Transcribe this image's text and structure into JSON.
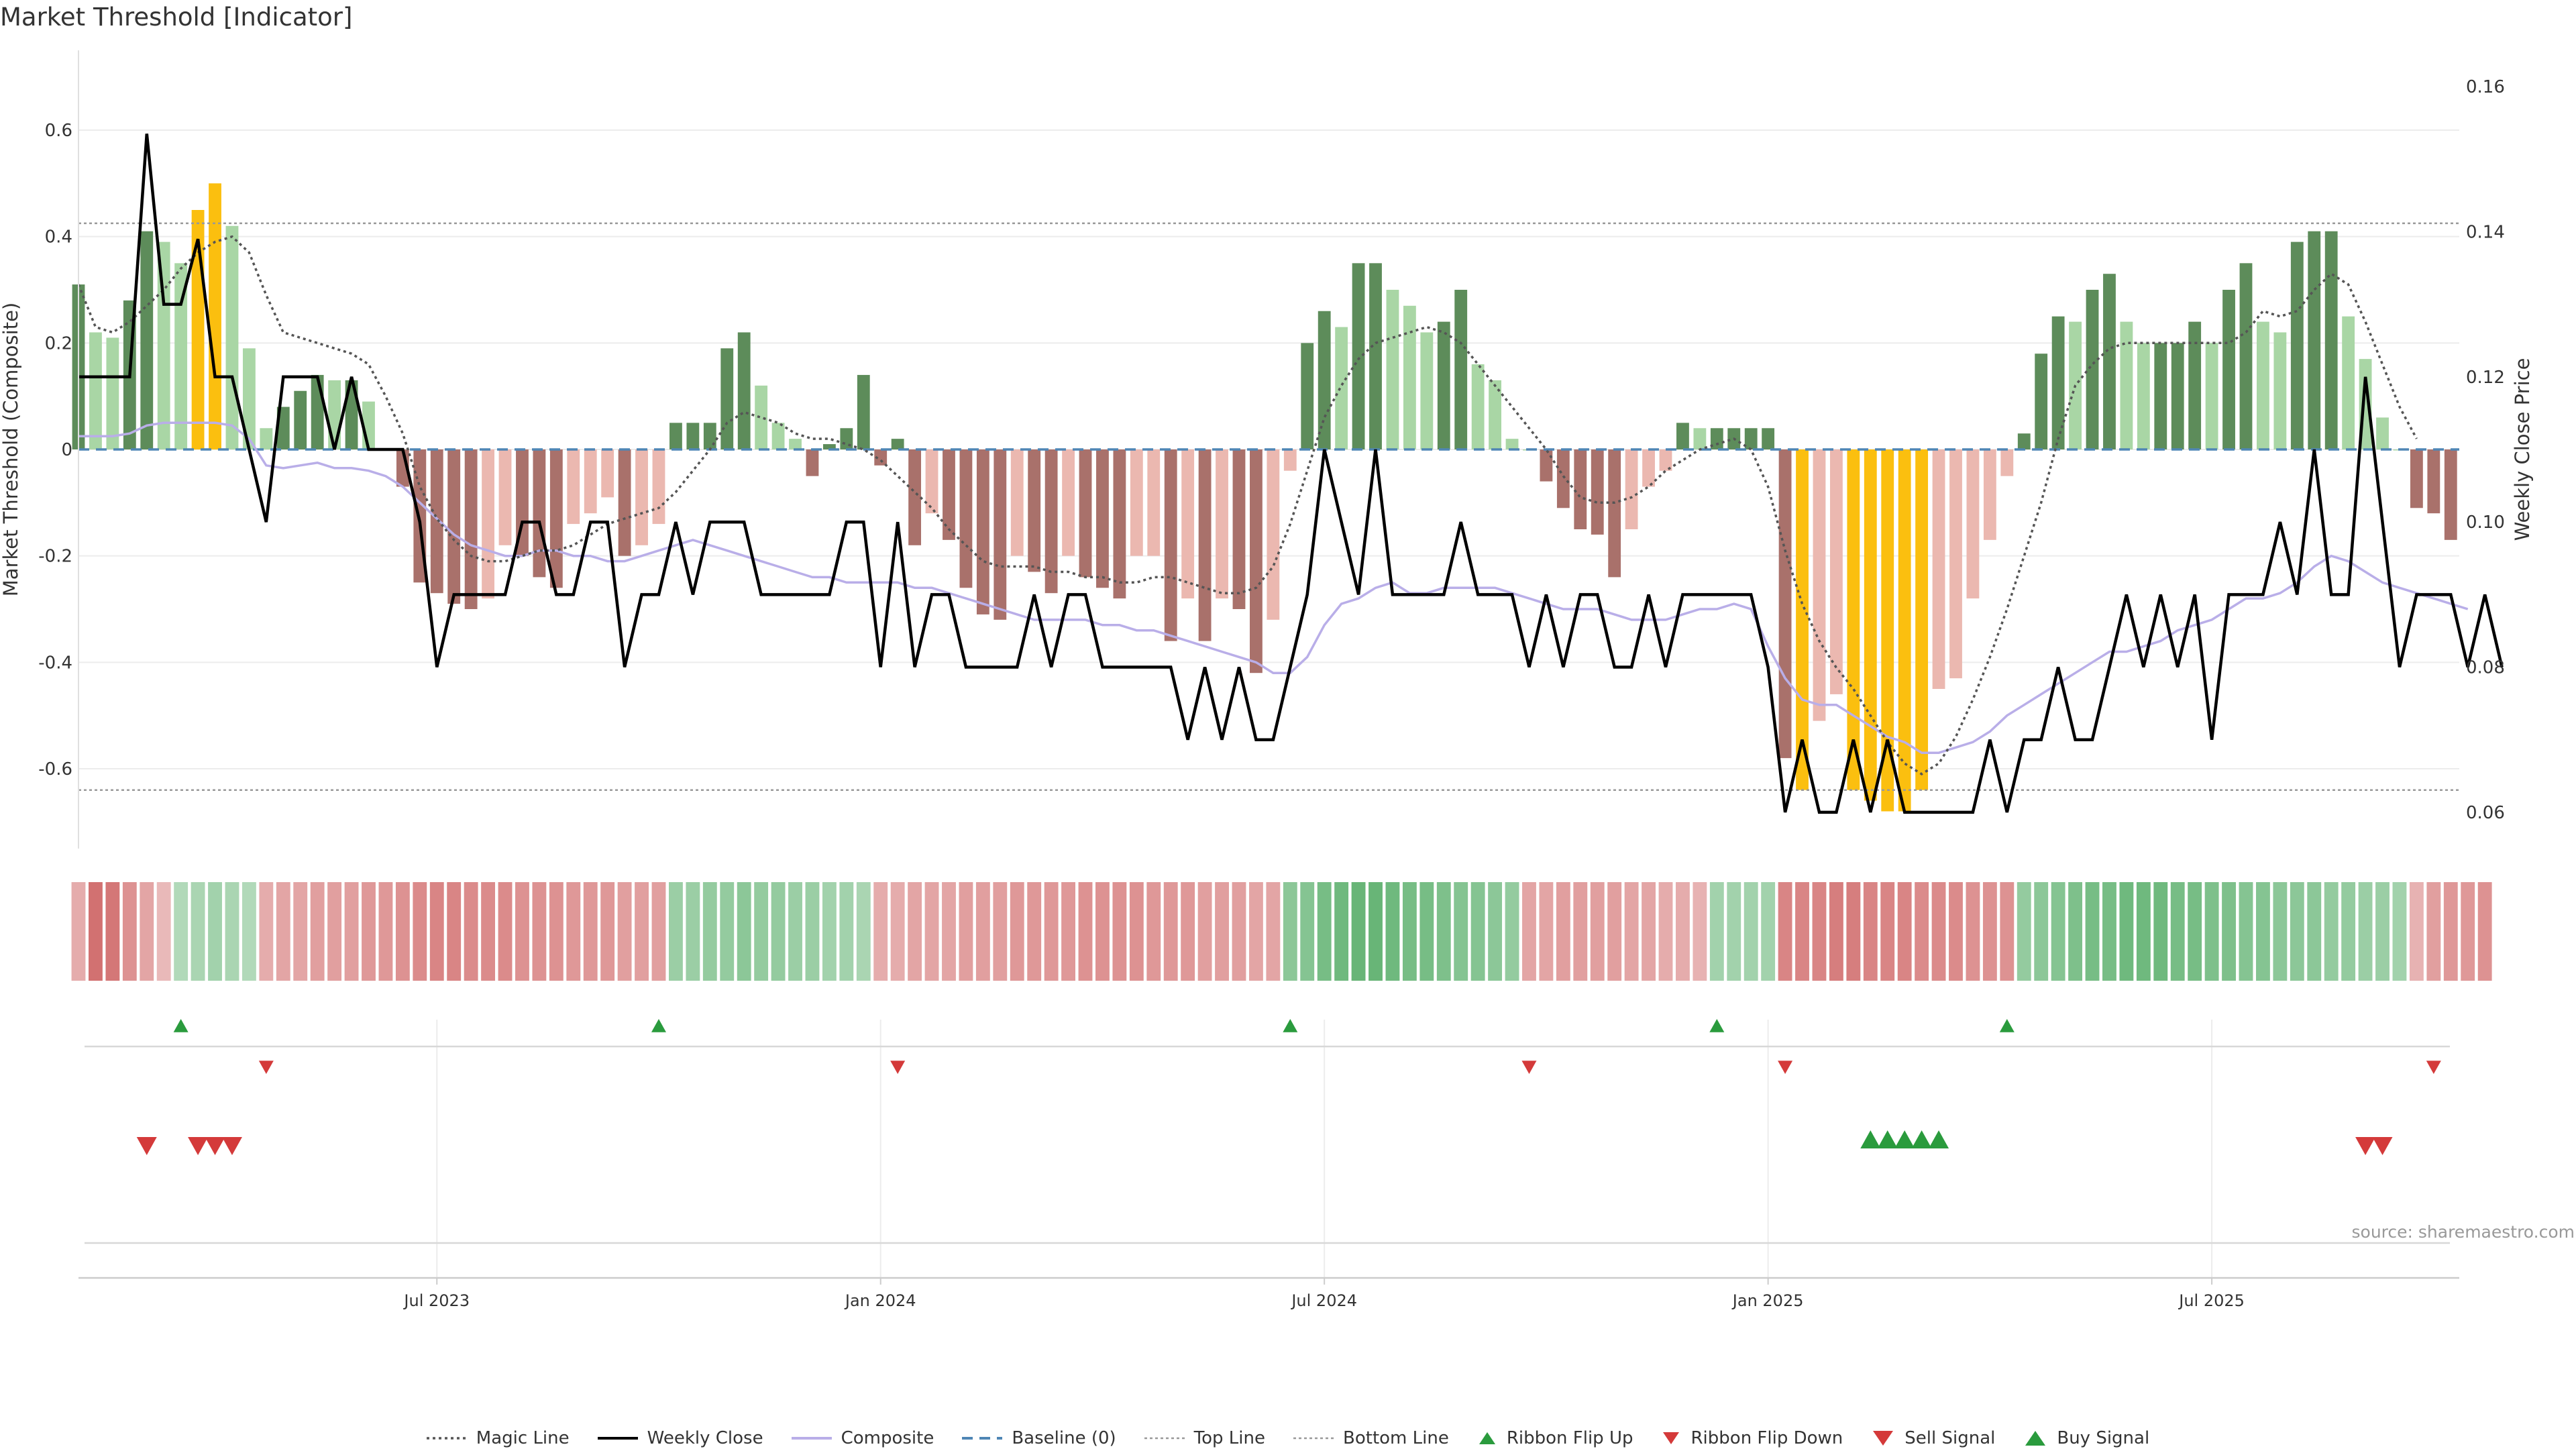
{
  "title": "Market Threshold [Indicator]",
  "source": "source: sharemaestro.com",
  "colors": {
    "bar_light_green": "#a9d6a5",
    "bar_dark_green": "#5d8c5a",
    "bar_light_red": "#ebb8b0",
    "bar_dark_red": "#a9716b",
    "bar_extreme": "#fbbf0f",
    "weekly_close": "#000000",
    "composite": "#b9aee8",
    "magic_line": "#555555",
    "baseline": "#4f86b5",
    "threshold_line": "#999999",
    "up_marker": "#2a9b3d",
    "down_marker": "#d43a3a"
  },
  "chart_data": {
    "type": "bar",
    "start_week": "2023-02-26",
    "y_left_label": "Market Threshold (Composite)",
    "y_right_label": "Weekly Close Price",
    "y_left_ticks": [
      -0.6,
      -0.4,
      -0.2,
      0,
      0.2,
      0.4,
      0.6
    ],
    "y_right_ticks": [
      0.06,
      0.08,
      0.1,
      0.12,
      0.14,
      0.16
    ],
    "ylim_left": [
      -0.75,
      0.75
    ],
    "ylim_right": [
      0.055,
      0.165
    ],
    "x_ticks": [
      {
        "label": "Jul 2023",
        "week": 21
      },
      {
        "label": "Jan 2024",
        "week": 47
      },
      {
        "label": "Jul 2024",
        "week": 73
      },
      {
        "label": "Jan 2025",
        "week": 99
      },
      {
        "label": "Jul 2025",
        "week": 125
      }
    ],
    "top_line": 0.425,
    "bottom_line": -0.64,
    "baseline": 0,
    "composite_bars": [
      0.31,
      0.22,
      0.21,
      0.28,
      0.41,
      0.39,
      0.35,
      0.45,
      0.5,
      0.42,
      0.19,
      0.04,
      0.08,
      0.11,
      0.14,
      0.13,
      0.13,
      0.09,
      0,
      -0.07,
      -0.25,
      -0.27,
      -0.29,
      -0.3,
      -0.28,
      -0.18,
      -0.2,
      -0.24,
      -0.26,
      -0.14,
      -0.12,
      -0.09,
      -0.2,
      -0.18,
      -0.14,
      0.05,
      0.05,
      0.05,
      0.19,
      0.22,
      0.12,
      0.05,
      0.02,
      -0.05,
      0.01,
      0.04,
      0.14,
      -0.03,
      0.02,
      -0.18,
      -0.12,
      -0.17,
      -0.26,
      -0.31,
      -0.32,
      -0.2,
      -0.23,
      -0.27,
      -0.2,
      -0.24,
      -0.26,
      -0.28,
      -0.2,
      -0.2,
      -0.36,
      -0.28,
      -0.36,
      -0.28,
      -0.3,
      -0.42,
      -0.32,
      -0.04,
      0.2,
      0.26,
      0.23,
      0.35,
      0.35,
      0.3,
      0.27,
      0.22,
      0.24,
      0.3,
      0.16,
      0.13,
      0.02,
      0,
      -0.06,
      -0.11,
      -0.15,
      -0.16,
      -0.24,
      -0.15,
      -0.07,
      -0.04,
      0.05,
      0.04,
      0.04,
      0.04,
      0.04,
      0.04,
      -0.58,
      -0.64,
      -0.51,
      -0.46,
      -0.64,
      -0.66,
      -0.68,
      -0.68,
      -0.64,
      -0.45,
      -0.43,
      -0.28,
      -0.17,
      -0.05,
      0.03,
      0.18,
      0.25,
      0.24,
      0.3,
      0.33,
      0.24,
      0.2,
      0.2,
      0.2,
      0.24,
      0.2,
      0.3,
      0.35,
      0.24,
      0.22,
      0.39,
      0.41,
      0.41,
      0.25,
      0.17,
      0.06,
      0,
      -0.11,
      -0.12,
      -0.17
    ],
    "weekly_close": [
      0.12,
      0.12,
      0.12,
      0.12,
      0.1535,
      0.13,
      0.13,
      0.139,
      0.12,
      0.12,
      0.11,
      0.1,
      0.12,
      0.12,
      0.12,
      0.11,
      0.12,
      0.11,
      0.11,
      0.11,
      0.1,
      0.08,
      0.09,
      0.09,
      0.09,
      0.09,
      0.1,
      0.1,
      0.09,
      0.09,
      0.1,
      0.1,
      0.08,
      0.09,
      0.09,
      0.1,
      0.09,
      0.1,
      0.1,
      0.1,
      0.09,
      0.09,
      0.09,
      0.09,
      0.09,
      0.1,
      0.1,
      0.08,
      0.1,
      0.08,
      0.09,
      0.09,
      0.08,
      0.08,
      0.08,
      0.08,
      0.09,
      0.08,
      0.09,
      0.09,
      0.08,
      0.08,
      0.08,
      0.08,
      0.08,
      0.07,
      0.08,
      0.07,
      0.08,
      0.07,
      0.07,
      0.08,
      0.09,
      0.11,
      0.1,
      0.09,
      0.11,
      0.09,
      0.09,
      0.09,
      0.09,
      0.1,
      0.09,
      0.09,
      0.09,
      0.08,
      0.09,
      0.08,
      0.09,
      0.09,
      0.08,
      0.08,
      0.09,
      0.08,
      0.09,
      0.09,
      0.09,
      0.09,
      0.09,
      0.08,
      0.06,
      0.07,
      0.06,
      0.06,
      0.07,
      0.06,
      0.07,
      0.06,
      0.06,
      0.06,
      0.06,
      0.06,
      0.07,
      0.06,
      0.07,
      0.07,
      0.08,
      0.07,
      0.07,
      0.08,
      0.09,
      0.08,
      0.09,
      0.08,
      0.09,
      0.07,
      0.09,
      0.09,
      0.09,
      0.1,
      0.09,
      0.11,
      0.09,
      0.09,
      0.12,
      0.1,
      0.08,
      0.09,
      0.09,
      0.09,
      0.08,
      0.09,
      0.08
    ],
    "composite_line": [
      0.025,
      0.025,
      0.025,
      0.03,
      0.045,
      0.05,
      0.05,
      0.05,
      0.05,
      0.045,
      0.02,
      -0.03,
      -0.035,
      -0.03,
      -0.025,
      -0.035,
      -0.035,
      -0.04,
      -0.05,
      -0.07,
      -0.1,
      -0.13,
      -0.16,
      -0.18,
      -0.19,
      -0.2,
      -0.2,
      -0.19,
      -0.19,
      -0.2,
      -0.2,
      -0.21,
      -0.21,
      -0.2,
      -0.19,
      -0.18,
      -0.17,
      -0.18,
      -0.19,
      -0.2,
      -0.21,
      -0.22,
      -0.23,
      -0.24,
      -0.24,
      -0.25,
      -0.25,
      -0.25,
      -0.25,
      -0.26,
      -0.26,
      -0.27,
      -0.28,
      -0.29,
      -0.3,
      -0.31,
      -0.32,
      -0.32,
      -0.32,
      -0.32,
      -0.33,
      -0.33,
      -0.34,
      -0.34,
      -0.35,
      -0.36,
      -0.37,
      -0.38,
      -0.39,
      -0.4,
      -0.42,
      -0.42,
      -0.39,
      -0.33,
      -0.29,
      -0.28,
      -0.26,
      -0.25,
      -0.27,
      -0.27,
      -0.26,
      -0.26,
      -0.26,
      -0.26,
      -0.27,
      -0.28,
      -0.29,
      -0.3,
      -0.3,
      -0.3,
      -0.31,
      -0.32,
      -0.32,
      -0.32,
      -0.31,
      -0.3,
      -0.3,
      -0.29,
      -0.3,
      -0.37,
      -0.43,
      -0.47,
      -0.48,
      -0.48,
      -0.5,
      -0.52,
      -0.54,
      -0.55,
      -0.57,
      -0.57,
      -0.56,
      -0.55,
      -0.53,
      -0.5,
      -0.48,
      -0.46,
      -0.44,
      -0.42,
      -0.4,
      -0.38,
      -0.38,
      -0.37,
      -0.36,
      -0.34,
      -0.33,
      -0.32,
      -0.3,
      -0.28,
      -0.28,
      -0.27,
      -0.25,
      -0.22,
      -0.2,
      -0.21,
      -0.23,
      -0.25,
      -0.26,
      -0.27,
      -0.28,
      -0.29,
      -0.3
    ],
    "magic_line": [
      0.31,
      0.23,
      0.22,
      0.24,
      0.27,
      0.3,
      0.34,
      0.37,
      0.39,
      0.4,
      0.37,
      0.29,
      0.22,
      0.21,
      0.2,
      0.19,
      0.18,
      0.16,
      0.1,
      0.03,
      -0.07,
      -0.13,
      -0.17,
      -0.2,
      -0.21,
      -0.21,
      -0.2,
      -0.19,
      -0.19,
      -0.18,
      -0.16,
      -0.14,
      -0.13,
      -0.12,
      -0.11,
      -0.08,
      -0.04,
      0,
      0.05,
      0.07,
      0.06,
      0.05,
      0.03,
      0.02,
      0.02,
      0.01,
      0,
      -0.02,
      -0.05,
      -0.08,
      -0.11,
      -0.15,
      -0.18,
      -0.21,
      -0.22,
      -0.22,
      -0.22,
      -0.23,
      -0.23,
      -0.24,
      -0.24,
      -0.25,
      -0.25,
      -0.24,
      -0.24,
      -0.25,
      -0.26,
      -0.27,
      -0.27,
      -0.26,
      -0.22,
      -0.14,
      -0.04,
      0.06,
      0.12,
      0.17,
      0.2,
      0.21,
      0.22,
      0.23,
      0.22,
      0.2,
      0.16,
      0.12,
      0.08,
      0.04,
      0,
      -0.05,
      -0.09,
      -0.1,
      -0.1,
      -0.09,
      -0.07,
      -0.04,
      -0.02,
      0,
      0.01,
      0.02,
      0,
      -0.07,
      -0.19,
      -0.29,
      -0.36,
      -0.41,
      -0.45,
      -0.5,
      -0.55,
      -0.59,
      -0.61,
      -0.59,
      -0.54,
      -0.47,
      -0.39,
      -0.3,
      -0.2,
      -0.1,
      0.02,
      0.12,
      0.16,
      0.19,
      0.2,
      0.2,
      0.2,
      0.2,
      0.2,
      0.2,
      0.2,
      0.22,
      0.26,
      0.25,
      0.26,
      0.3,
      0.33,
      0.31,
      0.24,
      0.16,
      0.08,
      0.02
    ],
    "ribbon": [
      -0.3,
      -0.75,
      -0.7,
      -0.5,
      -0.35,
      -0.2,
      0.2,
      0.25,
      0.3,
      0.25,
      0.2,
      -0.3,
      -0.35,
      -0.35,
      -0.4,
      -0.4,
      -0.4,
      -0.45,
      -0.45,
      -0.5,
      -0.55,
      -0.6,
      -0.6,
      -0.55,
      -0.55,
      -0.55,
      -0.5,
      -0.5,
      -0.5,
      -0.45,
      -0.45,
      -0.45,
      -0.4,
      -0.4,
      -0.4,
      0.35,
      0.35,
      0.4,
      0.4,
      0.45,
      0.4,
      0.4,
      0.35,
      0.35,
      0.3,
      0.3,
      0.25,
      -0.3,
      -0.3,
      -0.35,
      -0.35,
      -0.35,
      -0.4,
      -0.4,
      -0.4,
      -0.45,
      -0.45,
      -0.45,
      -0.45,
      -0.5,
      -0.5,
      -0.5,
      -0.5,
      -0.45,
      -0.45,
      -0.45,
      -0.4,
      -0.4,
      -0.4,
      -0.35,
      -0.35,
      0.45,
      0.5,
      0.6,
      0.65,
      0.7,
      0.7,
      0.65,
      0.6,
      0.6,
      0.55,
      0.5,
      0.5,
      0.45,
      0.4,
      -0.35,
      -0.35,
      -0.4,
      -0.4,
      -0.4,
      -0.4,
      -0.35,
      -0.35,
      -0.3,
      -0.3,
      -0.25,
      0.3,
      0.3,
      0.3,
      0.3,
      -0.6,
      -0.6,
      -0.6,
      -0.65,
      -0.65,
      -0.6,
      -0.6,
      -0.6,
      -0.55,
      -0.55,
      -0.55,
      -0.5,
      -0.5,
      -0.5,
      0.4,
      0.45,
      0.5,
      0.55,
      0.6,
      0.6,
      0.65,
      0.65,
      0.65,
      0.6,
      0.6,
      0.55,
      0.55,
      0.5,
      0.5,
      0.45,
      0.45,
      0.45,
      0.4,
      0.4,
      0.35,
      0.35,
      0.3,
      -0.25,
      -0.4,
      -0.45,
      -0.45,
      -0.5
    ],
    "ribbon_flip_up_weeks": [
      6,
      34,
      71,
      96,
      113
    ],
    "ribbon_flip_down_weeks": [
      11,
      48,
      85,
      100,
      138
    ],
    "sell_signal_weeks": [
      4,
      7,
      8,
      9,
      134,
      135
    ],
    "buy_signal_weeks": [
      105,
      106,
      107,
      108,
      109
    ],
    "legend": [
      "Magic Line",
      "Weekly Close",
      "Composite",
      "Baseline (0)",
      "Top Line",
      "Bottom Line",
      "Ribbon Flip Up",
      "Ribbon Flip Down",
      "Sell Signal",
      "Buy Signal"
    ]
  }
}
